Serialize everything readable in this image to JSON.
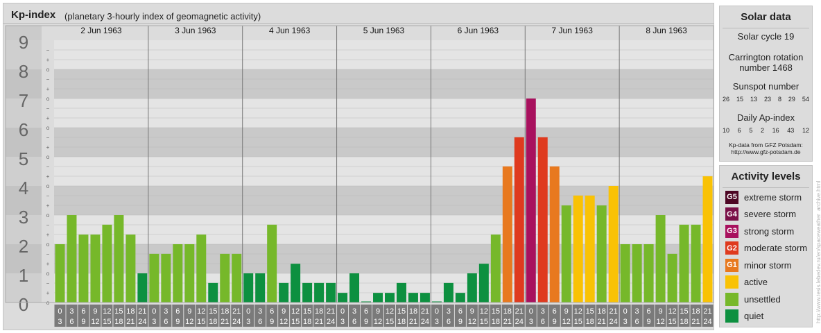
{
  "header": {
    "title": "Kp-index",
    "subtitle": "(planetary 3-hourly index of geomagnetic activity)"
  },
  "chart_data": {
    "type": "bar",
    "y_range": [
      0,
      9
    ],
    "y_tick_labels": [
      "0",
      "1",
      "2",
      "3",
      "4",
      "5",
      "6",
      "7",
      "8",
      "9"
    ],
    "minor_tick_labels": [
      "+",
      "o",
      "−"
    ],
    "days": [
      "2 Jun 1963",
      "3 Jun 1963",
      "4 Jun 1963",
      "5 Jun 1963",
      "6 Jun 1963",
      "7 Jun 1963",
      "8 Jun 1963"
    ],
    "interval_labels": [
      [
        "0",
        "3"
      ],
      [
        "3",
        "6"
      ],
      [
        "6",
        "9"
      ],
      [
        "9",
        "12"
      ],
      [
        "12",
        "15"
      ],
      [
        "15",
        "18"
      ],
      [
        "18",
        "21"
      ],
      [
        "21",
        "24"
      ]
    ],
    "values": [
      [
        2.0,
        3.0,
        2.33,
        2.33,
        2.67,
        3.0,
        2.33,
        1.0
      ],
      [
        1.67,
        1.67,
        2.0,
        2.0,
        2.33,
        0.67,
        1.67,
        1.67
      ],
      [
        1.0,
        1.0,
        2.67,
        0.67,
        1.33,
        0.67,
        0.67,
        0.67
      ],
      [
        0.33,
        1.0,
        0.0,
        0.33,
        0.33,
        0.67,
        0.33,
        0.33
      ],
      [
        0.0,
        0.67,
        0.33,
        1.0,
        1.33,
        2.33,
        4.67,
        5.67
      ],
      [
        7.0,
        5.67,
        4.67,
        3.33,
        3.67,
        3.67,
        3.33,
        4.0
      ],
      [
        2.0,
        2.0,
        2.0,
        3.0,
        1.67,
        2.67,
        2.67,
        4.33
      ]
    ],
    "colors": {
      "quiet": "#0d9040",
      "unsettled": "#76b82a",
      "active": "#f9c205",
      "minor": "#e8791f",
      "moderate": "#df3a1e",
      "strong": "#a8115e",
      "severe": "#7a1048",
      "extreme": "#4d0624",
      "tick_box": "#7a7a7a"
    }
  },
  "solar": {
    "title": "Solar data",
    "cycle": "Solar cycle 19",
    "carrington_line1": "Carrington rotation",
    "carrington_line2": "number 1468",
    "sunspot_label": "Sunspot number",
    "sunspot_values": [
      "26",
      "15",
      "13",
      "23",
      "8",
      "29",
      "54"
    ],
    "ap_label": "Daily Ap-index",
    "ap_values": [
      "10",
      "6",
      "5",
      "2",
      "16",
      "43",
      "12"
    ],
    "source_line1": "Kp-data from GFZ Potsdam:",
    "source_line2": "http://www.gfz-potsdam.de"
  },
  "activity": {
    "title": "Activity levels",
    "items": [
      {
        "badge": "G5",
        "label": "extreme storm",
        "color": "#4d0624"
      },
      {
        "badge": "G4",
        "label": "severe storm",
        "color": "#7a1048"
      },
      {
        "badge": "G3",
        "label": "strong storm",
        "color": "#a8115e"
      },
      {
        "badge": "G2",
        "label": "moderate storm",
        "color": "#df3a1e"
      },
      {
        "badge": "G1",
        "label": "minor storm",
        "color": "#e8791f"
      },
      {
        "badge": "",
        "label": "active",
        "color": "#f9c205"
      },
      {
        "badge": "",
        "label": "unsettled",
        "color": "#76b82a"
      },
      {
        "badge": "",
        "label": "quiet",
        "color": "#0d9040"
      }
    ]
  },
  "watermark": "http://www.tesis.lebedev.ru/en/spaceweather_archive.html"
}
